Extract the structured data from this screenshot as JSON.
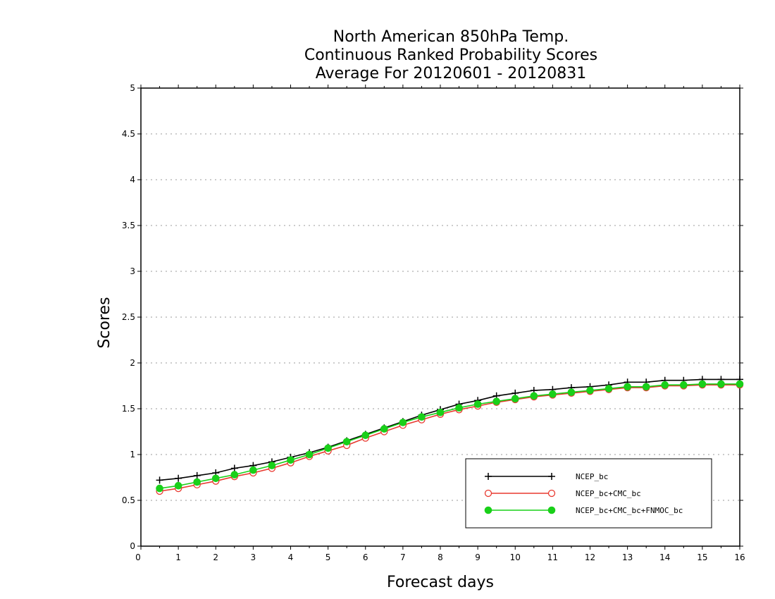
{
  "chart_data": {
    "type": "line",
    "title": [
      "North American 850hPa Temp.",
      "Continuous Ranked Probability Scores",
      "Average For 20120601 - 20120831"
    ],
    "xlabel": "Forecast days",
    "ylabel": "Scores",
    "xlim": [
      0,
      16
    ],
    "ylim": [
      0,
      5
    ],
    "xticks": [
      "0",
      "1",
      "2",
      "3",
      "4",
      "5",
      "6",
      "7",
      "8",
      "9",
      "10",
      "11",
      "12",
      "13",
      "14",
      "15",
      "16"
    ],
    "yticks": [
      "0",
      "0.5",
      "1",
      "1.5",
      "2",
      "2.5",
      "3",
      "3.5",
      "4",
      "4.5",
      "5"
    ],
    "grid": "horizontal dotted",
    "legend_position": "bottom-right",
    "x": [
      0.5,
      1,
      1.5,
      2,
      2.5,
      3,
      3.5,
      4,
      4.5,
      5,
      5.5,
      6,
      6.5,
      7,
      7.5,
      8,
      8.5,
      9,
      9.5,
      10,
      10.5,
      11,
      11.5,
      12,
      12.5,
      13,
      13.5,
      14,
      14.5,
      15,
      15.5,
      16
    ],
    "series": [
      {
        "name": "NCEP_bc",
        "color": "#000000",
        "marker": "plus",
        "values": [
          0.72,
          0.74,
          0.77,
          0.8,
          0.85,
          0.88,
          0.92,
          0.97,
          1.02,
          1.08,
          1.15,
          1.22,
          1.29,
          1.36,
          1.43,
          1.49,
          1.55,
          1.59,
          1.64,
          1.67,
          1.7,
          1.71,
          1.73,
          1.74,
          1.76,
          1.79,
          1.79,
          1.81,
          1.81,
          1.82,
          1.82,
          1.82
        ]
      },
      {
        "name": "NCEP_bc+CMC_bc",
        "color": "#e8392f",
        "marker": "open-circle",
        "values": [
          0.6,
          0.63,
          0.67,
          0.71,
          0.76,
          0.8,
          0.85,
          0.91,
          0.98,
          1.04,
          1.1,
          1.18,
          1.25,
          1.32,
          1.38,
          1.44,
          1.49,
          1.53,
          1.57,
          1.6,
          1.63,
          1.65,
          1.67,
          1.69,
          1.71,
          1.73,
          1.73,
          1.75,
          1.75,
          1.76,
          1.76,
          1.76
        ]
      },
      {
        "name": "NCEP_bc+CMC_bc+FNMOC_bc",
        "color": "#19d019",
        "marker": "filled-circle",
        "values": [
          0.63,
          0.66,
          0.7,
          0.74,
          0.78,
          0.83,
          0.88,
          0.94,
          1.0,
          1.07,
          1.14,
          1.21,
          1.28,
          1.35,
          1.41,
          1.46,
          1.51,
          1.55,
          1.58,
          1.61,
          1.64,
          1.66,
          1.68,
          1.7,
          1.72,
          1.74,
          1.74,
          1.76,
          1.76,
          1.77,
          1.77,
          1.77
        ]
      }
    ]
  }
}
